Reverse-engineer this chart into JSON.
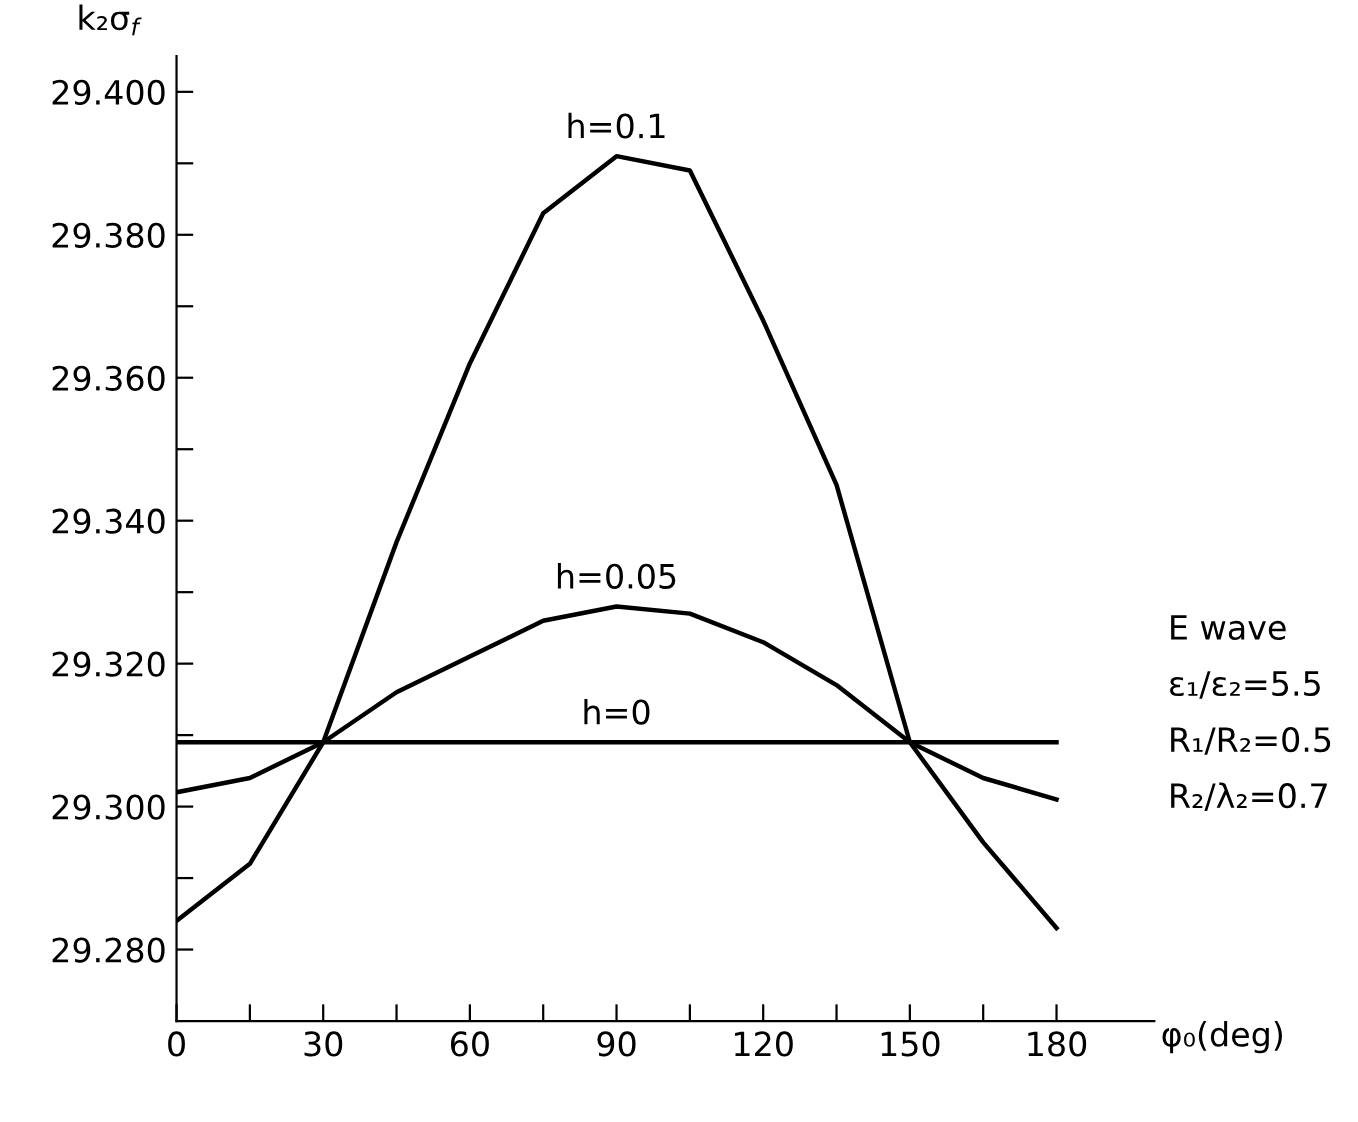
{
  "chart_data": {
    "type": "line",
    "ylabel": "k₂σ$_{f}$",
    "xlabel": "φ₀(deg)",
    "x": [
      0,
      15,
      30,
      45,
      60,
      75,
      90,
      105,
      120,
      135,
      150,
      165,
      180
    ],
    "series": [
      {
        "name": "h=0.1",
        "color": "#000000",
        "values": [
          29.284,
          29.292,
          29.309,
          29.337,
          29.362,
          29.383,
          29.391,
          29.389,
          29.368,
          29.345,
          29.309,
          29.295,
          29.283
        ]
      },
      {
        "name": "h=0.05",
        "color": "#000000",
        "values": [
          29.302,
          29.304,
          29.309,
          29.316,
          29.321,
          29.326,
          29.328,
          29.327,
          29.323,
          29.317,
          29.309,
          29.304,
          29.301
        ]
      },
      {
        "name": "h=0",
        "color": "#000000",
        "values": [
          29.309,
          29.309,
          29.309,
          29.309,
          29.309,
          29.309,
          29.309,
          29.309,
          29.309,
          29.309,
          29.309,
          29.309,
          29.309
        ]
      }
    ],
    "annotations": [
      "E wave",
      "ε₁/ε₂=5.5",
      "R₁/R₂=0.5",
      "R₂/λ₂=0.7"
    ],
    "xlim": [
      0,
      200
    ],
    "ylim": [
      29.27,
      29.405
    ],
    "xticks": [
      0,
      {
        "value": 15,
        "label": null
      },
      30,
      {
        "value": 45,
        "label": null
      },
      60,
      {
        "value": 75,
        "label": null
      },
      90,
      {
        "value": 105,
        "label": null
      },
      120,
      {
        "value": 135,
        "label": null
      },
      150,
      {
        "value": 165,
        "label": null
      },
      180
    ],
    "yticks": [
      {
        "value": 29.28,
        "label": "29.280"
      },
      {
        "value": 29.29,
        "label": null
      },
      {
        "value": 29.3,
        "label": "29.300"
      },
      {
        "value": 29.31,
        "label": null
      },
      {
        "value": 29.32,
        "label": "29.320"
      },
      {
        "value": 29.33,
        "label": null
      },
      {
        "value": 29.34,
        "label": "29.340"
      },
      {
        "value": 29.35,
        "label": null
      },
      {
        "value": 29.36,
        "label": "29.360"
      },
      {
        "value": 29.37,
        "label": null
      },
      {
        "value": 29.38,
        "label": "29.380"
      },
      {
        "value": 29.39,
        "label": null
      },
      {
        "value": 29.4,
        "label": "29.400"
      }
    ],
    "grid": false,
    "legend": false,
    "marker": "none",
    "line_style": "solid"
  }
}
